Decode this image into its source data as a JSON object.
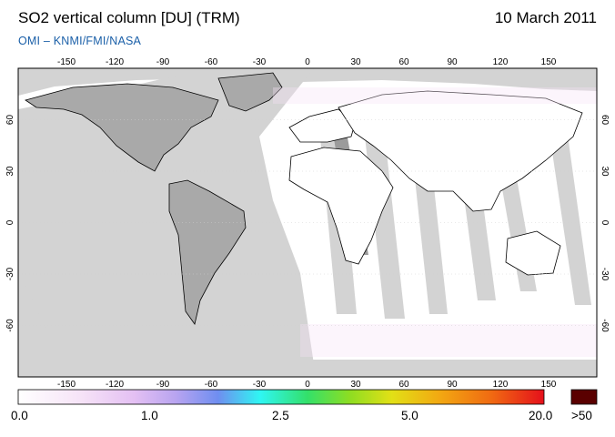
{
  "header": {
    "title": "SO2 vertical column [DU] (TRM)",
    "date": "10 March 2011",
    "credit": "OMI  –  KNMI/FMI/NASA"
  },
  "map": {
    "projection": "equirectangular",
    "lon_range": [
      -180,
      180
    ],
    "lat_range": [
      -90,
      90
    ],
    "lon_ticks": [
      "-150",
      "-120",
      "-90",
      "-60",
      "-30",
      "0",
      "30",
      "60",
      "90",
      "120",
      "150"
    ],
    "lat_ticks": [
      "60",
      "30",
      "0",
      "-30",
      "-60"
    ],
    "colors": {
      "no_data": "#d3d3d3",
      "land": "#a9a9a9",
      "dark_strip": "#9b9b9b",
      "ocean": "#ffffff"
    }
  },
  "colorbar": {
    "labels": [
      "0.0",
      "1.0",
      "2.5",
      "5.0",
      "20.0",
      ">50"
    ],
    "colors": [
      "#ffffff",
      "#f3d9f5",
      "#d7b5f3",
      "#8a8af0",
      "#2ff6f3",
      "#33e06a",
      "#8ddd22",
      "#e2e016",
      "#f2a912",
      "#f06a12",
      "#e5101b",
      "#5a0000"
    ]
  }
}
